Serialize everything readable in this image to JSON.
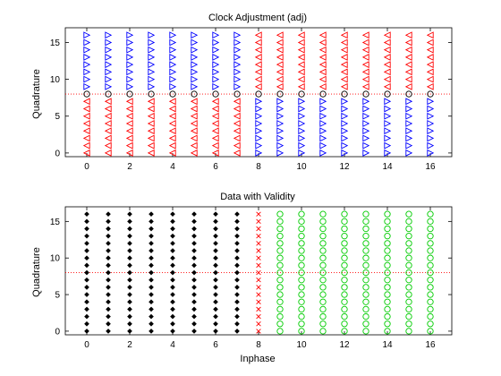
{
  "chart_data": [
    {
      "type": "scatter",
      "title": "Clock Adjustment (adj)",
      "xlabel": "",
      "ylabel": "Quadrature",
      "xlim": [
        -1,
        17
      ],
      "ylim": [
        -0.5,
        17
      ],
      "xticks": [
        0,
        2,
        4,
        6,
        8,
        10,
        12,
        14,
        16
      ],
      "yticks": [
        0,
        5,
        10,
        15
      ],
      "grid": false,
      "series": [
        {
          "marker": "triangle-right",
          "color": "#0000ff",
          "points_rule": "x in 0..7: y 9..16; x in 8..16: y 0..7",
          "x": [
            0,
            1,
            2,
            3,
            4,
            5,
            6,
            7,
            8,
            9,
            10,
            11,
            12,
            13,
            14,
            15,
            16
          ],
          "y_ranges": [
            [
              9,
              16
            ],
            [
              9,
              16
            ],
            [
              9,
              16
            ],
            [
              9,
              16
            ],
            [
              9,
              16
            ],
            [
              9,
              16
            ],
            [
              9,
              16
            ],
            [
              9,
              16
            ],
            [
              0,
              7
            ],
            [
              0,
              7
            ],
            [
              0,
              7
            ],
            [
              0,
              7
            ],
            [
              0,
              7
            ],
            [
              0,
              7
            ],
            [
              0,
              7
            ],
            [
              0,
              7
            ],
            [
              0,
              7
            ]
          ]
        },
        {
          "marker": "triangle-left",
          "color": "#ff0000",
          "x": [
            0,
            1,
            2,
            3,
            4,
            5,
            6,
            7,
            8,
            9,
            10,
            11,
            12,
            13,
            14,
            15,
            16
          ],
          "y_ranges": [
            [
              0,
              7
            ],
            [
              0,
              7
            ],
            [
              0,
              7
            ],
            [
              0,
              7
            ],
            [
              0,
              7
            ],
            [
              0,
              7
            ],
            [
              0,
              7
            ],
            [
              0,
              7
            ],
            [
              9,
              16
            ],
            [
              9,
              16
            ],
            [
              9,
              16
            ],
            [
              9,
              16
            ],
            [
              9,
              16
            ],
            [
              9,
              16
            ],
            [
              9,
              16
            ],
            [
              9,
              16
            ],
            [
              9,
              16
            ]
          ]
        },
        {
          "marker": "circle",
          "color": "#000000",
          "x": [
            0,
            1,
            2,
            3,
            4,
            5,
            6,
            7,
            8,
            9,
            10,
            11,
            12,
            13,
            14,
            15,
            16
          ],
          "y_ranges": [
            [
              8,
              8
            ],
            [
              8,
              8
            ],
            [
              8,
              8
            ],
            [
              8,
              8
            ],
            [
              8,
              8
            ],
            [
              8,
              8
            ],
            [
              8,
              8
            ],
            [
              8,
              8
            ],
            [
              8,
              8
            ],
            [
              8,
              8
            ],
            [
              8,
              8
            ],
            [
              8,
              8
            ],
            [
              8,
              8
            ],
            [
              8,
              8
            ],
            [
              8,
              8
            ],
            [
              8,
              8
            ],
            [
              8,
              8
            ]
          ]
        }
      ],
      "reference_line": {
        "y": 8,
        "style": "dotted",
        "color": "#ff0000"
      }
    },
    {
      "type": "scatter",
      "title": "Data with Validity",
      "xlabel": "Inphase",
      "ylabel": "Quadrature",
      "xlim": [
        -1,
        17
      ],
      "ylim": [
        -0.5,
        17
      ],
      "xticks": [
        0,
        2,
        4,
        6,
        8,
        10,
        12,
        14,
        16
      ],
      "yticks": [
        0,
        5,
        10,
        15
      ],
      "grid": false,
      "series": [
        {
          "marker": "diamond",
          "color": "#000000",
          "x": [
            0,
            1,
            2,
            3,
            4,
            5,
            6,
            7
          ],
          "y_ranges": [
            [
              0,
              16
            ],
            [
              0,
              16
            ],
            [
              0,
              16
            ],
            [
              0,
              16
            ],
            [
              0,
              16
            ],
            [
              0,
              16
            ],
            [
              0,
              16
            ],
            [
              0,
              16
            ]
          ]
        },
        {
          "marker": "x",
          "color": "#ff0000",
          "x": [
            8
          ],
          "y_ranges": [
            [
              0,
              16
            ]
          ]
        },
        {
          "marker": "circle",
          "color": "#00cc00",
          "x": [
            9,
            10,
            11,
            12,
            13,
            14,
            15,
            16
          ],
          "y_ranges": [
            [
              0,
              16
            ],
            [
              0,
              16
            ],
            [
              0,
              16
            ],
            [
              0,
              16
            ],
            [
              0,
              16
            ],
            [
              0,
              16
            ],
            [
              0,
              16
            ],
            [
              0,
              16
            ]
          ]
        }
      ],
      "reference_line": {
        "y": 8,
        "style": "dotted",
        "color": "#ff0000"
      }
    }
  ]
}
